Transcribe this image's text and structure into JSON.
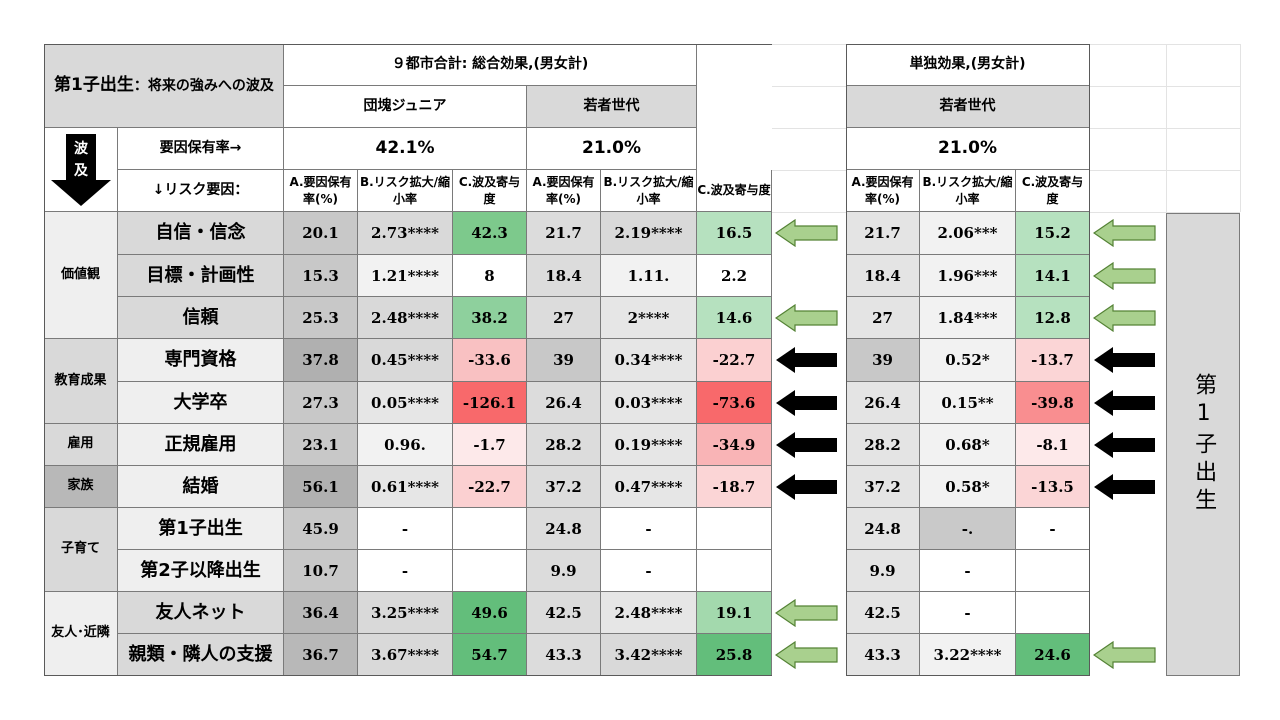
{
  "header": {
    "title_main": "第1子出生",
    "title_rest": "：将来の強みへの波及",
    "total_effect": "９都市合計: 総合効果,(男女計)",
    "single_effect": "単独効果,(男女計)",
    "gen_dankai": "団塊ジュニア",
    "gen_young": "若者世代",
    "gen_young_single": "若者世代",
    "spread_label": "波及",
    "rate_label": "要因保有率→",
    "risk_label": "↓リスク要因：",
    "rate_dankai": "42.1%",
    "rate_young": "21.0%",
    "rate_young_single": "21.0%",
    "col_a": "A.要因保有率(%)",
    "col_b": "B.リスク拡大/縮小率",
    "col_c": "C.波及寄与度"
  },
  "categories": {
    "values": "価値観",
    "education": "教育成果",
    "employment": "雇用",
    "family": "家族",
    "childrearing": "子育て",
    "friends": "友人･近隣"
  },
  "rows": [
    {
      "factor": "自信・信念",
      "d": [
        "20.1",
        "2.73****",
        "42.3"
      ],
      "y": [
        "21.7",
        "2.19****",
        "16.5"
      ],
      "s": [
        "21.7",
        "2.06***",
        "15.2"
      ]
    },
    {
      "factor": "目標・計画性",
      "d": [
        "15.3",
        "1.21****",
        "8"
      ],
      "y": [
        "18.4",
        "1.11.",
        "2.2"
      ],
      "s": [
        "18.4",
        "1.96***",
        "14.1"
      ]
    },
    {
      "factor": "信頼",
      "d": [
        "25.3",
        "2.48****",
        "38.2"
      ],
      "y": [
        "27",
        "2****",
        "14.6"
      ],
      "s": [
        "27",
        "1.84***",
        "12.8"
      ]
    },
    {
      "factor": "専門資格",
      "d": [
        "37.8",
        "0.45****",
        "-33.6"
      ],
      "y": [
        "39",
        "0.34****",
        "-22.7"
      ],
      "s": [
        "39",
        "0.52*",
        "-13.7"
      ]
    },
    {
      "factor": "大学卒",
      "d": [
        "27.3",
        "0.05****",
        "-126.1"
      ],
      "y": [
        "26.4",
        "0.03****",
        "-73.6"
      ],
      "s": [
        "26.4",
        "0.15**",
        "-39.8"
      ]
    },
    {
      "factor": "正規雇用",
      "d": [
        "23.1",
        "0.96.",
        "-1.7"
      ],
      "y": [
        "28.2",
        "0.19****",
        "-34.9"
      ],
      "s": [
        "28.2",
        "0.68*",
        "-8.1"
      ]
    },
    {
      "factor": "結婚",
      "d": [
        "56.1",
        "0.61****",
        "-22.7"
      ],
      "y": [
        "37.2",
        "0.47****",
        "-18.7"
      ],
      "s": [
        "37.2",
        "0.58*",
        "-13.5"
      ]
    },
    {
      "factor": "第1子出生",
      "d": [
        "45.9",
        "-",
        ""
      ],
      "y": [
        "24.8",
        "-",
        ""
      ],
      "s": [
        "24.8",
        "-.",
        "-"
      ]
    },
    {
      "factor": "第2子以降出生",
      "d": [
        "10.7",
        "-",
        ""
      ],
      "y": [
        "9.9",
        "-",
        ""
      ],
      "s": [
        "9.9",
        "-",
        ""
      ]
    },
    {
      "factor": "友人ネット",
      "d": [
        "36.4",
        "3.25****",
        "49.6"
      ],
      "y": [
        "42.5",
        "2.48****",
        "19.1"
      ],
      "s": [
        "42.5",
        "-",
        ""
      ]
    },
    {
      "factor": "親類・隣人の支援",
      "d": [
        "36.7",
        "3.67****",
        "54.7"
      ],
      "y": [
        "43.3",
        "3.42****",
        "25.8"
      ],
      "s": [
        "43.3",
        "3.22****",
        "24.6"
      ]
    }
  ],
  "arrows": [
    {
      "row": 0,
      "gap": "mid",
      "type": "positive"
    },
    {
      "row": 0,
      "gap": "right",
      "type": "positive"
    },
    {
      "row": 1,
      "gap": "right",
      "type": "positive"
    },
    {
      "row": 2,
      "gap": "mid",
      "type": "positive"
    },
    {
      "row": 2,
      "gap": "right",
      "type": "positive"
    },
    {
      "row": 3,
      "gap": "mid",
      "type": "negative"
    },
    {
      "row": 3,
      "gap": "right",
      "type": "negative"
    },
    {
      "row": 4,
      "gap": "mid",
      "type": "negative"
    },
    {
      "row": 4,
      "gap": "right",
      "type": "negative"
    },
    {
      "row": 5,
      "gap": "mid",
      "type": "negative"
    },
    {
      "row": 5,
      "gap": "right",
      "type": "negative"
    },
    {
      "row": 6,
      "gap": "mid",
      "type": "negative"
    },
    {
      "row": 6,
      "gap": "right",
      "type": "negative"
    },
    {
      "row": 9,
      "gap": "mid",
      "type": "positive"
    },
    {
      "row": 10,
      "gap": "mid",
      "type": "positive"
    },
    {
      "row": 10,
      "gap": "right",
      "type": "positive"
    }
  ],
  "side_label": "第1子出生",
  "colors": {
    "gray": "#d9d9d9",
    "light_gray": "#efefef",
    "dark_gray": "#b8b8b8",
    "positive_arrow": "#a9d08e",
    "negative_arrow": "#000000"
  }
}
